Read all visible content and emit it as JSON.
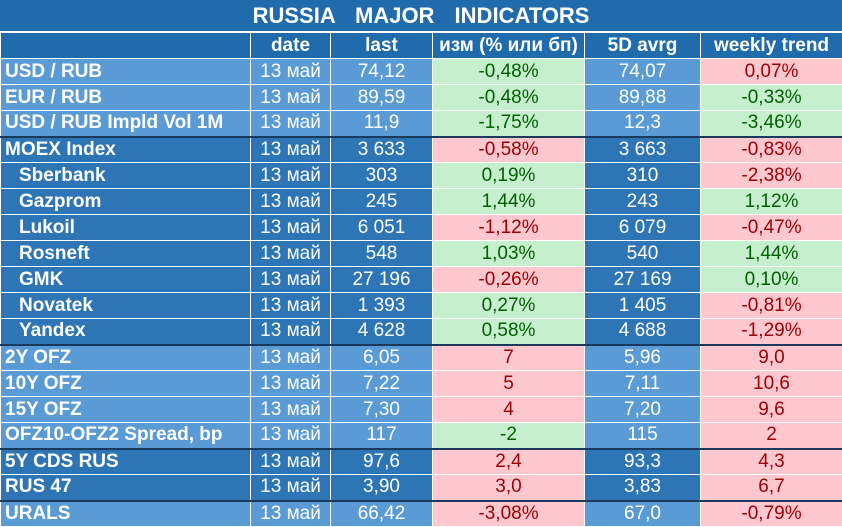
{
  "title": "RUSSIA   MAJOR   INDICATORS",
  "colors": {
    "header_dark": "#1f6bab",
    "header_light": "#5b9bd5",
    "row_light": "#5b9bd5",
    "row_dark": "#2e75b6",
    "positive_bg": "#c6efce",
    "positive_text": "#006100",
    "negative_bg": "#ffc7ce",
    "negative_text": "#9c0006"
  },
  "columns": [
    "",
    "date",
    "last",
    "изм (% или бп)",
    "5D avrg",
    "weekly trend"
  ],
  "rows": [
    {
      "name": "USD / RUB",
      "date": "13 май",
      "last": "74,12",
      "chg": "-0,48%",
      "chg_tone": "pos",
      "avg": "74,07",
      "wk": "0,07%",
      "wk_tone": "neg",
      "band": "light",
      "indent": false
    },
    {
      "name": "EUR / RUB",
      "date": "13 май",
      "last": "89,59",
      "chg": "-0,48%",
      "chg_tone": "pos",
      "avg": "89,88",
      "wk": "-0,33%",
      "wk_tone": "pos",
      "band": "light",
      "indent": false
    },
    {
      "name": "USD / RUB Impld Vol 1M",
      "date": "13 май",
      "last": "11,9",
      "chg": "-1,75%",
      "chg_tone": "pos",
      "avg": "12,3",
      "wk": "-3,46%",
      "wk_tone": "pos",
      "band": "light",
      "indent": false
    },
    {
      "name": "MOEX Index",
      "date": "13 май",
      "last": "3 633",
      "chg": "-0,58%",
      "chg_tone": "neg",
      "avg": "3 663",
      "wk": "-0,83%",
      "wk_tone": "neg",
      "band": "dark",
      "indent": false
    },
    {
      "name": "Sberbank",
      "date": "13 май",
      "last": "303",
      "chg": "0,19%",
      "chg_tone": "pos",
      "avg": "310",
      "wk": "-2,38%",
      "wk_tone": "neg",
      "band": "dark",
      "indent": true
    },
    {
      "name": "Gazprom",
      "date": "13 май",
      "last": "245",
      "chg": "1,44%",
      "chg_tone": "pos",
      "avg": "243",
      "wk": "1,12%",
      "wk_tone": "pos",
      "band": "dark",
      "indent": true
    },
    {
      "name": "Lukoil",
      "date": "13 май",
      "last": "6 051",
      "chg": "-1,12%",
      "chg_tone": "neg",
      "avg": "6 079",
      "wk": "-0,47%",
      "wk_tone": "neg",
      "band": "dark",
      "indent": true
    },
    {
      "name": "Rosneft",
      "date": "13 май",
      "last": "548",
      "chg": "1,03%",
      "chg_tone": "pos",
      "avg": "540",
      "wk": "1,44%",
      "wk_tone": "pos",
      "band": "dark",
      "indent": true
    },
    {
      "name": "GMK",
      "date": "13 май",
      "last": "27 196",
      "chg": "-0,26%",
      "chg_tone": "neg",
      "avg": "27 169",
      "wk": "0,10%",
      "wk_tone": "pos",
      "band": "dark",
      "indent": true
    },
    {
      "name": "Novatek",
      "date": "13 май",
      "last": "1 393",
      "chg": "0,27%",
      "chg_tone": "pos",
      "avg": "1 405",
      "wk": "-0,81%",
      "wk_tone": "neg",
      "band": "dark",
      "indent": true
    },
    {
      "name": "Yandex",
      "date": "13 май",
      "last": "4 628",
      "chg": "0,58%",
      "chg_tone": "pos",
      "avg": "4 688",
      "wk": "-1,29%",
      "wk_tone": "neg",
      "band": "dark",
      "indent": true
    },
    {
      "name": "2Y OFZ",
      "date": "13 май",
      "last": "6,05",
      "chg": "7",
      "chg_tone": "neg",
      "avg": "5,96",
      "wk": "9,0",
      "wk_tone": "neg",
      "band": "light",
      "indent": false
    },
    {
      "name": "10Y OFZ",
      "date": "13 май",
      "last": "7,22",
      "chg": "5",
      "chg_tone": "neg",
      "avg": "7,11",
      "wk": "10,6",
      "wk_tone": "neg",
      "band": "light",
      "indent": false
    },
    {
      "name": "15Y OFZ",
      "date": "13 май",
      "last": "7,30",
      "chg": "4",
      "chg_tone": "neg",
      "avg": "7,20",
      "wk": "9,6",
      "wk_tone": "neg",
      "band": "light",
      "indent": false
    },
    {
      "name": "OFZ10-OFZ2 Spread, bp",
      "date": "13 май",
      "last": "117",
      "chg": "-2",
      "chg_tone": "pos",
      "avg": "115",
      "wk": "2",
      "wk_tone": "neg",
      "band": "light",
      "indent": false
    },
    {
      "name": "5Y CDS RUS",
      "date": "13 май",
      "last": "97,6",
      "chg": "2,4",
      "chg_tone": "neg",
      "avg": "93,3",
      "wk": "4,3",
      "wk_tone": "neg",
      "band": "dark",
      "indent": false
    },
    {
      "name": "RUS 47",
      "date": "13 май",
      "last": "3,90",
      "chg": "3,0",
      "chg_tone": "neg",
      "avg": "3,83",
      "wk": "6,7",
      "wk_tone": "neg",
      "band": "dark",
      "indent": false
    },
    {
      "name": "URALS",
      "date": "13 май",
      "last": "66,42",
      "chg": "-3,08%",
      "chg_tone": "neg",
      "avg": "67,0",
      "wk": "-0,79%",
      "wk_tone": "neg",
      "band": "light",
      "indent": false
    }
  ]
}
